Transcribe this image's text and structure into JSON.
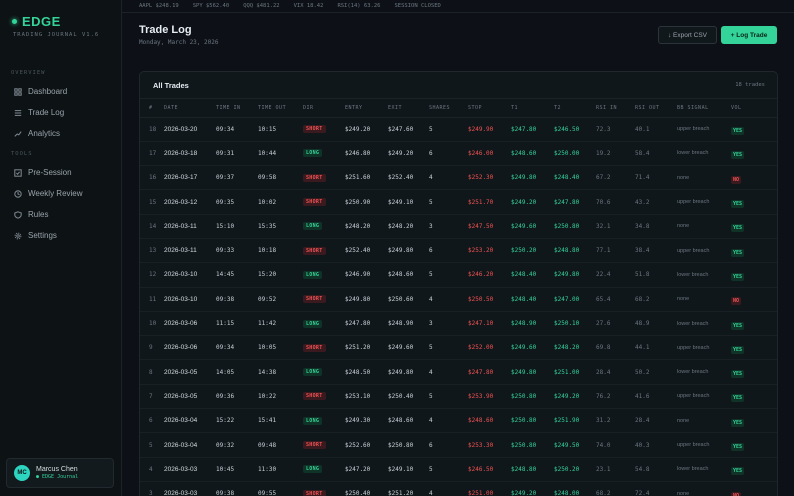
{
  "brand": {
    "name": "EDGE",
    "subtitle": "TRADING JOURNAL V1.6"
  },
  "sidebar": {
    "overview_label": "OVERVIEW",
    "tools_label": "TOOLS",
    "overview_items": [
      {
        "label": "Dashboard",
        "icon": "grid-icon"
      },
      {
        "label": "Trade Log",
        "icon": "list-icon"
      },
      {
        "label": "Analytics",
        "icon": "trend-icon"
      }
    ],
    "tool_items": [
      {
        "label": "Pre-Session",
        "icon": "checkbox-icon"
      },
      {
        "label": "Weekly Review",
        "icon": "clock-icon"
      },
      {
        "label": "Rules",
        "icon": "shield-icon"
      },
      {
        "label": "Settings",
        "icon": "gear-icon"
      }
    ]
  },
  "user": {
    "initials": "MC",
    "name": "Marcus Chen",
    "subtitle": "● EDGE Journal"
  },
  "ticker": [
    "AAPL $248.19",
    "SPY $562.40",
    "QQQ $481.22",
    "VIX 18.42",
    "RSI(14) 63.26",
    "SESSION CLOSED"
  ],
  "header": {
    "title": "Trade Log",
    "date": "Monday, March 23, 2026",
    "export_label": "↓ Export CSV",
    "log_label": "+ Log Trade"
  },
  "panel": {
    "title": "All Trades",
    "count": "18 trades"
  },
  "columns": [
    "#",
    "DATE",
    "TIME IN",
    "TIME OUT",
    "DIR",
    "ENTRY",
    "EXIT",
    "SHARES",
    "STOP",
    "T1",
    "T2",
    "RSI IN",
    "RSI OUT",
    "BB SIGNAL",
    "VOL"
  ],
  "trades": [
    [
      "18",
      "2026-03-20",
      "09:34",
      "10:15",
      "SHORT",
      "$249.20",
      "$247.60",
      "5",
      "$249.90",
      "$247.80",
      "$246.50",
      "72.3",
      "40.1",
      "upper breach",
      "YES"
    ],
    [
      "17",
      "2026-03-18",
      "09:31",
      "10:44",
      "LONG",
      "$246.80",
      "$249.20",
      "6",
      "$246.00",
      "$248.60",
      "$250.00",
      "19.2",
      "58.4",
      "lower breach",
      "YES"
    ],
    [
      "16",
      "2026-03-17",
      "09:37",
      "09:58",
      "SHORT",
      "$251.60",
      "$252.40",
      "4",
      "$252.30",
      "$249.80",
      "$248.40",
      "67.2",
      "71.4",
      "none",
      "NO"
    ],
    [
      "15",
      "2026-03-12",
      "09:35",
      "10:02",
      "SHORT",
      "$250.90",
      "$249.10",
      "5",
      "$251.70",
      "$249.20",
      "$247.80",
      "70.6",
      "43.2",
      "upper breach",
      "YES"
    ],
    [
      "14",
      "2026-03-11",
      "15:10",
      "15:35",
      "LONG",
      "$248.20",
      "$248.20",
      "3",
      "$247.50",
      "$249.60",
      "$250.80",
      "32.1",
      "34.8",
      "none",
      "YES"
    ],
    [
      "13",
      "2026-03-11",
      "09:33",
      "10:18",
      "SHORT",
      "$252.40",
      "$249.80",
      "6",
      "$253.20",
      "$250.20",
      "$248.80",
      "77.1",
      "38.4",
      "upper breach",
      "YES"
    ],
    [
      "12",
      "2026-03-10",
      "14:45",
      "15:20",
      "LONG",
      "$246.90",
      "$248.60",
      "5",
      "$246.20",
      "$248.40",
      "$249.80",
      "22.4",
      "51.8",
      "lower breach",
      "YES"
    ],
    [
      "11",
      "2026-03-10",
      "09:38",
      "09:52",
      "SHORT",
      "$249.80",
      "$250.60",
      "4",
      "$250.50",
      "$248.40",
      "$247.00",
      "65.4",
      "68.2",
      "none",
      "NO"
    ],
    [
      "10",
      "2026-03-06",
      "11:15",
      "11:42",
      "LONG",
      "$247.80",
      "$248.90",
      "3",
      "$247.10",
      "$248.90",
      "$250.10",
      "27.6",
      "48.9",
      "lower breach",
      "YES"
    ],
    [
      "9",
      "2026-03-06",
      "09:34",
      "10:05",
      "SHORT",
      "$251.20",
      "$249.60",
      "5",
      "$252.00",
      "$249.60",
      "$248.20",
      "69.8",
      "44.1",
      "upper breach",
      "YES"
    ],
    [
      "8",
      "2026-03-05",
      "14:05",
      "14:38",
      "LONG",
      "$248.50",
      "$249.80",
      "4",
      "$247.80",
      "$249.80",
      "$251.00",
      "28.4",
      "50.2",
      "lower breach",
      "YES"
    ],
    [
      "7",
      "2026-03-05",
      "09:36",
      "10:22",
      "SHORT",
      "$253.10",
      "$250.40",
      "5",
      "$253.90",
      "$250.80",
      "$249.20",
      "76.2",
      "41.6",
      "upper breach",
      "YES"
    ],
    [
      "6",
      "2026-03-04",
      "15:22",
      "15:41",
      "LONG",
      "$249.30",
      "$248.60",
      "4",
      "$248.60",
      "$250.80",
      "$251.90",
      "31.2",
      "28.4",
      "none",
      "YES"
    ],
    [
      "5",
      "2026-03-04",
      "09:32",
      "09:48",
      "SHORT",
      "$252.60",
      "$250.80",
      "6",
      "$253.30",
      "$250.80",
      "$249.50",
      "74.0",
      "40.3",
      "upper breach",
      "YES"
    ],
    [
      "4",
      "2026-03-03",
      "10:45",
      "11:30",
      "LONG",
      "$247.20",
      "$249.10",
      "5",
      "$246.50",
      "$248.80",
      "$250.20",
      "23.1",
      "54.8",
      "lower breach",
      "YES"
    ],
    [
      "3",
      "2026-03-03",
      "09:38",
      "09:55",
      "SHORT",
      "$250.40",
      "$251.20",
      "4",
      "$251.00",
      "$249.20",
      "$248.00",
      "68.2",
      "72.4",
      "none",
      "NO"
    ]
  ],
  "colors": {
    "accent": "#34d399",
    "negative": "#f05252",
    "background": "#0d1117"
  }
}
